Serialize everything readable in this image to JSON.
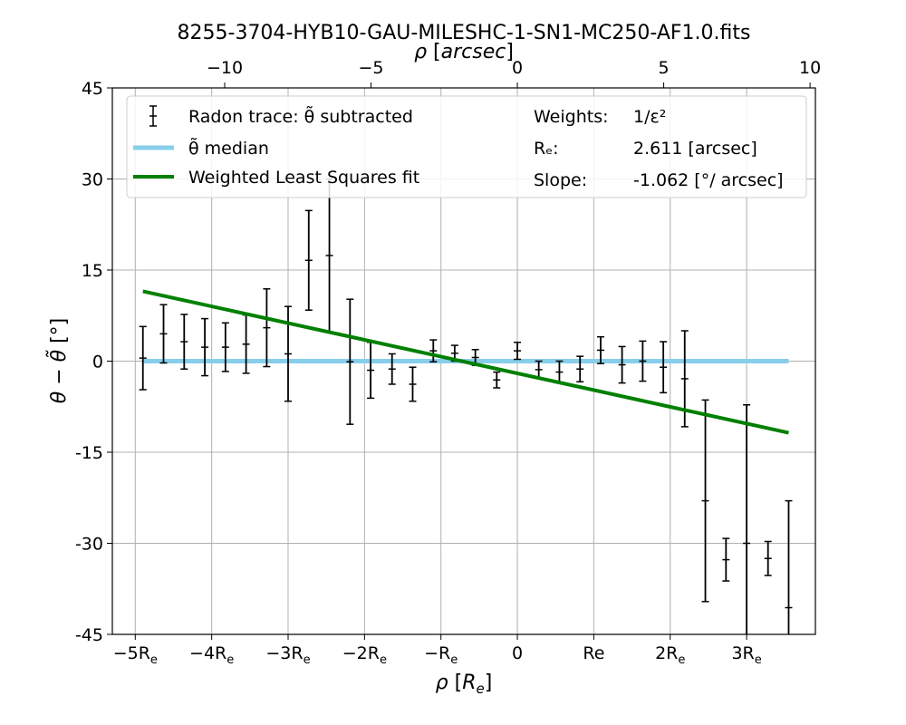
{
  "chart_data": {
    "type": "scatter",
    "title": "8255-3704-HYB10-GAU-MILESHC-1-SN1-MC250-AF1.0.fits",
    "xlabel": "ρ [R_e]",
    "xlabel_top": "ρ [arcsec]",
    "ylabel": "θ − θ̃ [°]",
    "xlim": [
      -5.3,
      3.9
    ],
    "ylim": [
      -45,
      45
    ],
    "re_arcsec": 2.611,
    "x_ticks_bottom": [
      {
        "value": -5,
        "base": "−5R",
        "sub": "e"
      },
      {
        "value": -4,
        "base": "−4R",
        "sub": "e"
      },
      {
        "value": -3,
        "base": "−3R",
        "sub": "e"
      },
      {
        "value": -2,
        "base": "−2R",
        "sub": "e"
      },
      {
        "value": -1,
        "base": "−R",
        "sub": "e"
      },
      {
        "value": 0,
        "base": "0",
        "sub": ""
      },
      {
        "value": 1,
        "base": "Re",
        "sub": ""
      },
      {
        "value": 2,
        "base": "2R",
        "sub": "e"
      },
      {
        "value": 3,
        "base": "3R",
        "sub": "e"
      }
    ],
    "x_ticks_top": [
      {
        "value": -10,
        "label": "−10"
      },
      {
        "value": -5,
        "label": "−5"
      },
      {
        "value": 0,
        "label": "0"
      },
      {
        "value": 5,
        "label": "5"
      },
      {
        "value": 10,
        "label": "10"
      }
    ],
    "y_ticks": [
      {
        "value": 45,
        "label": "45"
      },
      {
        "value": 30,
        "label": "30"
      },
      {
        "value": 15,
        "label": "15"
      },
      {
        "value": 0,
        "label": "0"
      },
      {
        "value": -15,
        "label": "-15"
      },
      {
        "value": -30,
        "label": "-30"
      },
      {
        "value": -45,
        "label": "-45"
      }
    ],
    "grid": true,
    "series": [
      {
        "name": "Radon trace: θ̃ subtracted",
        "kind": "errorbar",
        "color": "#000000",
        "points": [
          {
            "x": -4.9,
            "y": 0.5,
            "err": 5.2
          },
          {
            "x": -4.63,
            "y": 4.5,
            "err": 4.8
          },
          {
            "x": -4.36,
            "y": 3.2,
            "err": 4.5
          },
          {
            "x": -4.09,
            "y": 2.3,
            "err": 4.7
          },
          {
            "x": -3.82,
            "y": 2.3,
            "err": 4.0
          },
          {
            "x": -3.55,
            "y": 2.8,
            "err": 4.8
          },
          {
            "x": -3.28,
            "y": 5.5,
            "err": 6.4
          },
          {
            "x": -3.0,
            "y": 1.2,
            "err": 7.8
          },
          {
            "x": -2.73,
            "y": 16.6,
            "err": 8.2
          },
          {
            "x": -2.46,
            "y": 17.4,
            "err": 12.6
          },
          {
            "x": -2.19,
            "y": -0.1,
            "err": 10.3
          },
          {
            "x": -1.92,
            "y": -1.5,
            "err": 4.6
          },
          {
            "x": -1.64,
            "y": -1.3,
            "err": 2.5
          },
          {
            "x": -1.37,
            "y": -3.8,
            "err": 2.8
          },
          {
            "x": -1.1,
            "y": 1.7,
            "err": 1.8
          },
          {
            "x": -0.82,
            "y": 1.3,
            "err": 1.3
          },
          {
            "x": -0.55,
            "y": 0.6,
            "err": 1.3
          },
          {
            "x": -0.27,
            "y": -3.1,
            "err": 1.3
          },
          {
            "x": 0.0,
            "y": 1.7,
            "err": 1.4
          },
          {
            "x": 0.28,
            "y": -1.4,
            "err": 1.4
          },
          {
            "x": 0.55,
            "y": -1.8,
            "err": 1.8
          },
          {
            "x": 0.82,
            "y": -1.3,
            "err": 2.1
          },
          {
            "x": 1.09,
            "y": 1.8,
            "err": 2.2
          },
          {
            "x": 1.37,
            "y": -0.6,
            "err": 3.0
          },
          {
            "x": 1.64,
            "y": 0.0,
            "err": 3.3
          },
          {
            "x": 1.91,
            "y": -1.0,
            "err": 4.2
          },
          {
            "x": 2.19,
            "y": -2.9,
            "err": 7.9
          },
          {
            "x": 2.46,
            "y": -23.0,
            "err": 16.6
          },
          {
            "x": 2.73,
            "y": -32.7,
            "err": 3.5
          },
          {
            "x": 3.0,
            "y": -30.0,
            "err": 22.8
          },
          {
            "x": 3.28,
            "y": -32.5,
            "err": 2.8
          },
          {
            "x": 3.55,
            "y": -40.6,
            "err": 17.6
          }
        ]
      },
      {
        "name": "θ̃ median",
        "kind": "line",
        "color": "#87ceeb",
        "x": [
          -4.9,
          3.55
        ],
        "y": [
          0,
          0
        ]
      },
      {
        "name": "Weighted Least Squares fit",
        "kind": "line",
        "color": "#008000",
        "x": [
          -4.9,
          3.55
        ],
        "y": [
          11.5,
          -11.8
        ]
      }
    ],
    "legend": {
      "placement": "top-left",
      "info": [
        {
          "label": "Weights:",
          "value": "1/ε²"
        },
        {
          "label": "Rₑ:",
          "value": "2.611 [arcsec]"
        },
        {
          "label": "Slope:",
          "value": "-1.062 [°/ arcsec]"
        }
      ]
    }
  }
}
